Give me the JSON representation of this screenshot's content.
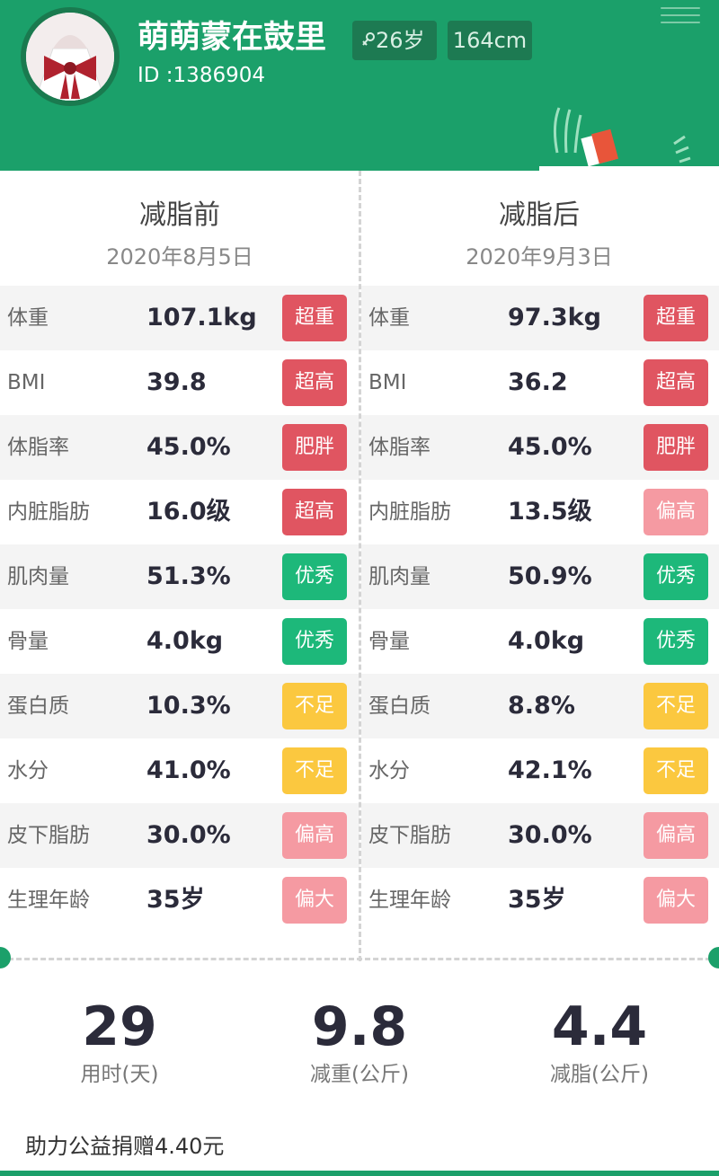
{
  "colors": {
    "brand_green": "#1ba06a",
    "badge_red": "#e05561",
    "badge_pink": "#f59aa2",
    "badge_green": "#1db87a",
    "badge_yellow": "#fbc83f"
  },
  "profile": {
    "name": "萌萌蒙在鼓里",
    "id": "ID :1386904",
    "age": "26岁",
    "height": "164cm"
  },
  "before": {
    "title": "减脂前",
    "date": "2020年8月5日",
    "rows": [
      {
        "label": "体重",
        "value": "107.1kg",
        "badge": "超重",
        "color": "#e05561"
      },
      {
        "label": "BMI",
        "value": "39.8",
        "badge": "超高",
        "color": "#e05561"
      },
      {
        "label": "体脂率",
        "value": "45.0%",
        "badge": "肥胖",
        "color": "#e05561"
      },
      {
        "label": "内脏脂肪",
        "value": "16.0级",
        "badge": "超高",
        "color": "#e05561"
      },
      {
        "label": "肌肉量",
        "value": "51.3%",
        "badge": "优秀",
        "color": "#1db87a"
      },
      {
        "label": "骨量",
        "value": "4.0kg",
        "badge": "优秀",
        "color": "#1db87a"
      },
      {
        "label": "蛋白质",
        "value": "10.3%",
        "badge": "不足",
        "color": "#fbc83f"
      },
      {
        "label": "水分",
        "value": "41.0%",
        "badge": "不足",
        "color": "#fbc83f"
      },
      {
        "label": "皮下脂肪",
        "value": "30.0%",
        "badge": "偏高",
        "color": "#f59aa2"
      },
      {
        "label": "生理年龄",
        "value": "35岁",
        "badge": "偏大",
        "color": "#f59aa2"
      }
    ]
  },
  "after": {
    "title": "减脂后",
    "date": "2020年9月3日",
    "rows": [
      {
        "label": "体重",
        "value": "97.3kg",
        "badge": "超重",
        "color": "#e05561"
      },
      {
        "label": "BMI",
        "value": "36.2",
        "badge": "超高",
        "color": "#e05561"
      },
      {
        "label": "体脂率",
        "value": "45.0%",
        "badge": "肥胖",
        "color": "#e05561"
      },
      {
        "label": "内脏脂肪",
        "value": "13.5级",
        "badge": "偏高",
        "color": "#f59aa2"
      },
      {
        "label": "肌肉量",
        "value": "50.9%",
        "badge": "优秀",
        "color": "#1db87a"
      },
      {
        "label": "骨量",
        "value": "4.0kg",
        "badge": "优秀",
        "color": "#1db87a"
      },
      {
        "label": "蛋白质",
        "value": "8.8%",
        "badge": "不足",
        "color": "#fbc83f"
      },
      {
        "label": "水分",
        "value": "42.1%",
        "badge": "不足",
        "color": "#fbc83f"
      },
      {
        "label": "皮下脂肪",
        "value": "30.0%",
        "badge": "偏高",
        "color": "#f59aa2"
      },
      {
        "label": "生理年龄",
        "value": "35岁",
        "badge": "偏大",
        "color": "#f59aa2"
      }
    ]
  },
  "summary": [
    {
      "value": "29",
      "label": "用时(天)"
    },
    {
      "value": "9.8",
      "label": "减重(公斤)"
    },
    {
      "value": "4.4",
      "label": "减脂(公斤)"
    }
  ],
  "donation": "助力公益捐赠4.40元"
}
